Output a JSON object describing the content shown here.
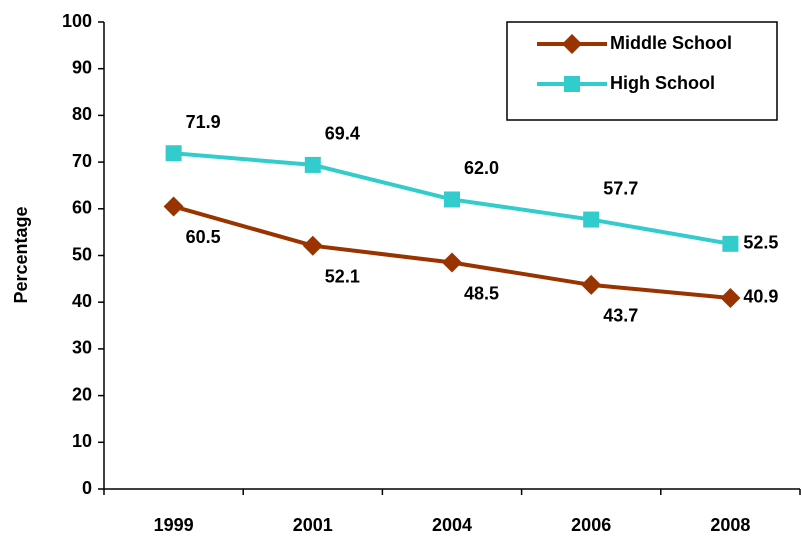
{
  "chart_data": {
    "type": "line",
    "y_label": "Percentage",
    "categories": [
      "1999",
      "2001",
      "2004",
      "2006",
      "2008"
    ],
    "series": [
      {
        "name": "Middle School",
        "color": "#993300",
        "marker": "diamond",
        "values": [
          60.5,
          52.1,
          48.5,
          43.7,
          40.9
        ],
        "value_labels": [
          "60.5",
          "52.1",
          "48.5",
          "43.7",
          "40.9"
        ]
      },
      {
        "name": "High School",
        "color": "#33cccc",
        "marker": "square",
        "values": [
          71.9,
          69.4,
          62.0,
          57.7,
          52.5
        ],
        "value_labels": [
          "71.9",
          "69.4",
          "62.0",
          "57.7",
          "52.5"
        ]
      }
    ],
    "ylim": [
      0,
      100
    ],
    "yticks": [
      0,
      10,
      20,
      30,
      40,
      50,
      60,
      70,
      80,
      90,
      100
    ],
    "grid": false,
    "legend": "upper right"
  }
}
